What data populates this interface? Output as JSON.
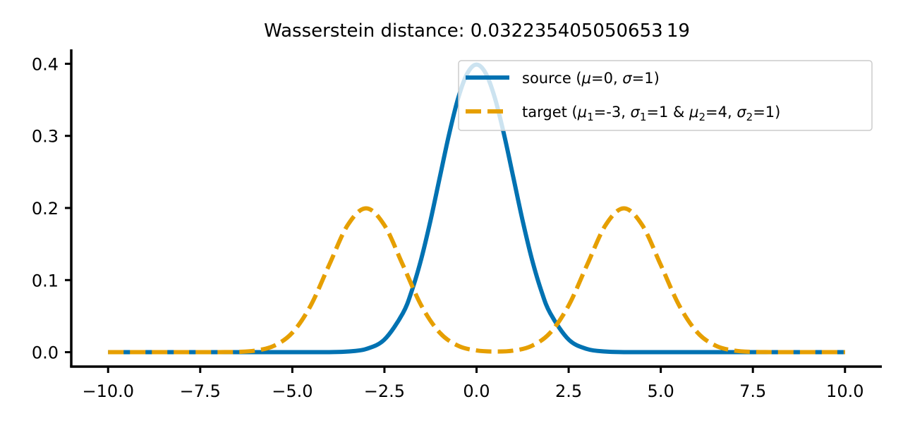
{
  "chart_data": {
    "type": "line",
    "title": "Wasserstein distance: 0.032235405050653 19",
    "xlabel": "",
    "ylabel": "",
    "xlim": [
      -11.0,
      11.0
    ],
    "ylim": [
      -0.02,
      0.42
    ],
    "x_ticks": [
      -10.0,
      -7.5,
      -5.0,
      -2.5,
      0.0,
      2.5,
      5.0,
      7.5,
      10.0
    ],
    "x_tick_labels": [
      "−10.0",
      "−7.5",
      "−5.0",
      "−2.5",
      "0.0",
      "2.5",
      "5.0",
      "7.5",
      "10.0"
    ],
    "y_ticks": [
      0.0,
      0.1,
      0.2,
      0.3,
      0.4
    ],
    "y_tick_labels": [
      "0.0",
      "0.1",
      "0.2",
      "0.3",
      "0.4"
    ],
    "grid": false,
    "legend_position": "upper-right",
    "series": [
      {
        "name": "source (μ=0, σ=1)",
        "legend": {
          "plain": "source (",
          "parts": [
            {
              "t": "μ",
              "style": "italic"
            },
            {
              "t": "=0, "
            },
            {
              "t": "σ",
              "style": "italic"
            },
            {
              "t": "=1)"
            }
          ]
        },
        "color": "#0072B2",
        "line_style": "solid",
        "x": [
          -10,
          -9,
          -8,
          -7,
          -6,
          -5,
          -4,
          -3.5,
          -3,
          -2.5,
          -2,
          -1.75,
          -1.5,
          -1.25,
          -1,
          -0.75,
          -0.5,
          -0.25,
          0,
          0.25,
          0.5,
          0.75,
          1,
          1.25,
          1.5,
          1.75,
          2,
          2.5,
          3,
          3.5,
          4,
          5,
          6,
          7,
          8,
          9,
          10
        ],
        "y": [
          0,
          0,
          0,
          0,
          0,
          0,
          0.0001,
          0.0009,
          0.0044,
          0.0175,
          0.054,
          0.0863,
          0.1295,
          0.1826,
          0.242,
          0.3011,
          0.3521,
          0.3867,
          0.3989,
          0.3867,
          0.3521,
          0.3011,
          0.242,
          0.1826,
          0.1295,
          0.0863,
          0.054,
          0.0175,
          0.0044,
          0.0009,
          0.0001,
          0,
          0,
          0,
          0,
          0,
          0
        ]
      },
      {
        "name": "target (μ1=-3, σ1=1 & μ2=4, σ2=1)",
        "legend": {
          "parts": [
            {
              "t": "target ("
            },
            {
              "t": "μ",
              "style": "italic"
            },
            {
              "t": "1",
              "style": "sub"
            },
            {
              "t": "=-3, "
            },
            {
              "t": "σ",
              "style": "italic"
            },
            {
              "t": "1",
              "style": "sub"
            },
            {
              "t": "=1 & "
            },
            {
              "t": "μ",
              "style": "italic"
            },
            {
              "t": "2",
              "style": "sub"
            },
            {
              "t": "=4, "
            },
            {
              "t": "σ",
              "style": "italic"
            },
            {
              "t": "2",
              "style": "sub"
            },
            {
              "t": "=1)"
            }
          ]
        },
        "color": "#E69F00",
        "line_style": "dashed",
        "x": [
          -10,
          -9,
          -8,
          -7,
          -6.5,
          -6,
          -5.5,
          -5,
          -4.5,
          -4,
          -3.5,
          -3,
          -2.5,
          -2,
          -1.5,
          -1,
          -0.5,
          0,
          0.5,
          1,
          1.5,
          2,
          2.5,
          3,
          3.5,
          4,
          4.5,
          5,
          5.5,
          6,
          6.5,
          7,
          7.5,
          8,
          9,
          10
        ],
        "y": [
          0,
          0,
          0,
          0.0001,
          0.0004,
          0.0022,
          0.0088,
          0.027,
          0.0648,
          0.121,
          0.176,
          0.1995,
          0.176,
          0.121,
          0.0648,
          0.0271,
          0.0089,
          0.0024,
          0.0009,
          0.0022,
          0.0088,
          0.027,
          0.0648,
          0.121,
          0.176,
          0.1995,
          0.176,
          0.121,
          0.0648,
          0.027,
          0.0088,
          0.0022,
          0.0004,
          0.0001,
          0,
          0
        ]
      }
    ]
  }
}
